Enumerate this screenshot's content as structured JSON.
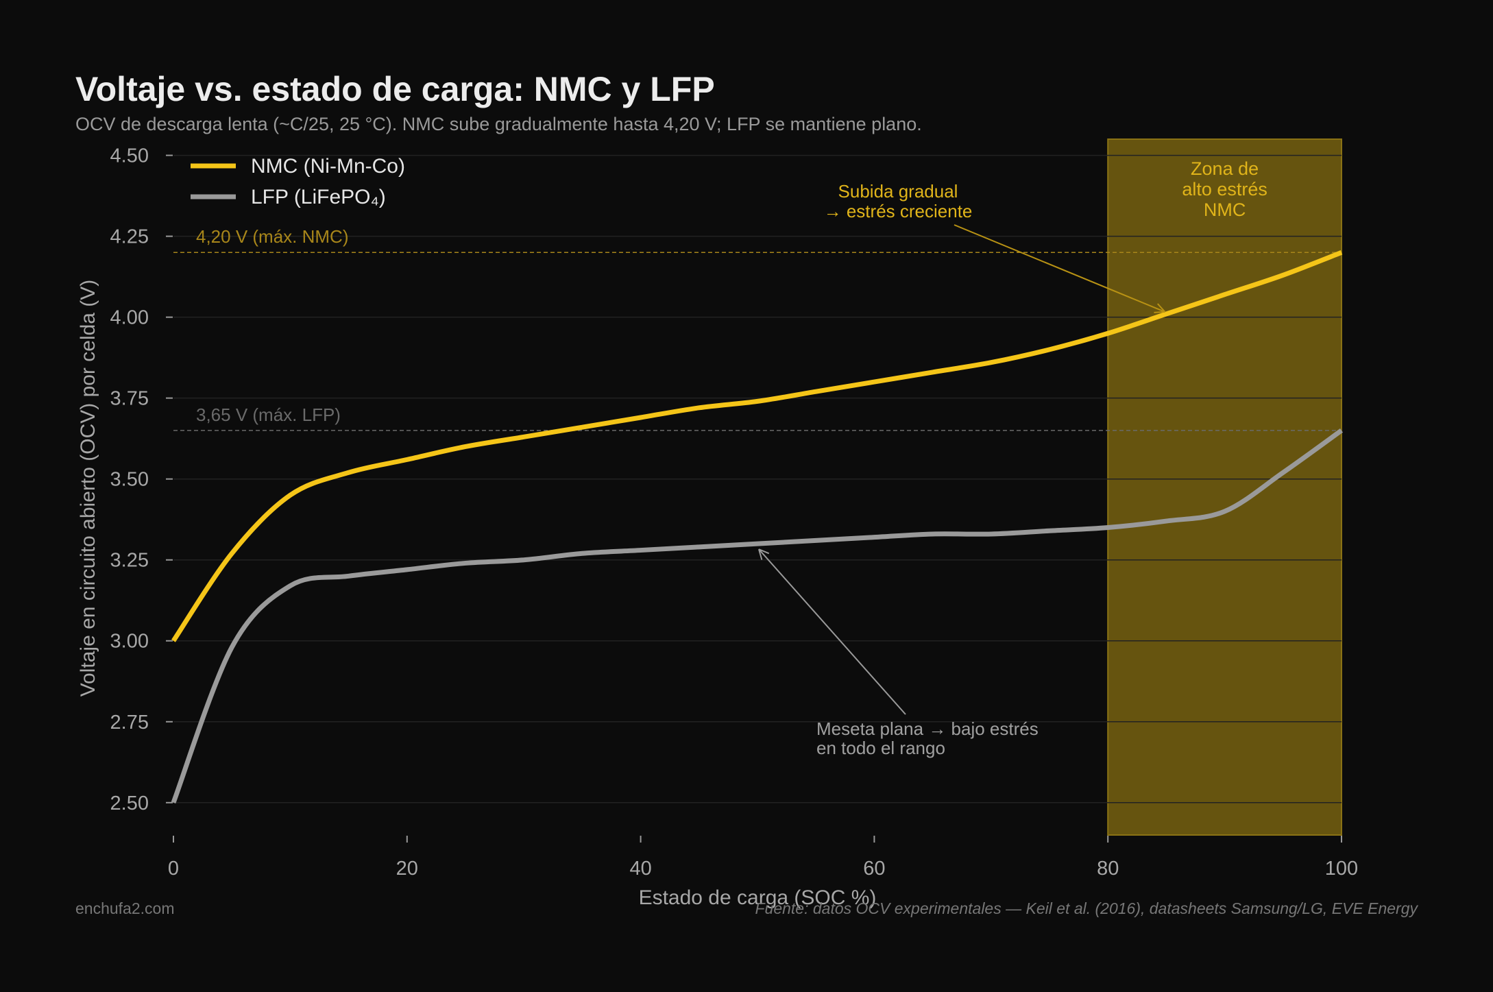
{
  "chart_data": {
    "type": "line",
    "title": "Voltaje vs. estado de carga: NMC y LFP",
    "subtitle": "OCV de descarga lenta (~C/25, 25 °C). NMC sube gradualmente hasta 4,20 V; LFP se mantiene plano.",
    "xlabel": "Estado de carga (SOC %)",
    "ylabel": "Voltaje en circuito abierto (OCV) por celda (V)",
    "xlim": [
      0,
      100
    ],
    "ylim": [
      2.4,
      4.55
    ],
    "xticks": [
      "0",
      "20",
      "40",
      "60",
      "80",
      "100"
    ],
    "yticks": [
      "2.50",
      "2.75",
      "3.00",
      "3.25",
      "3.50",
      "3.75",
      "4.00",
      "4.25",
      "4.50"
    ],
    "grid": true,
    "legend": "top-left",
    "x": [
      0,
      5,
      10,
      15,
      20,
      25,
      30,
      35,
      40,
      45,
      50,
      55,
      60,
      65,
      70,
      75,
      80,
      85,
      90,
      95,
      100
    ],
    "series": [
      {
        "name": "NMC (Ni-Mn-Co)",
        "color": "#f5c518",
        "values": [
          3.0,
          3.27,
          3.45,
          3.52,
          3.56,
          3.6,
          3.63,
          3.66,
          3.69,
          3.72,
          3.74,
          3.77,
          3.8,
          3.83,
          3.86,
          3.9,
          3.95,
          4.01,
          4.07,
          4.13,
          4.2
        ]
      },
      {
        "name": "LFP (LiFePO₄)",
        "color": "#9a9a9a",
        "values": [
          2.5,
          2.98,
          3.17,
          3.2,
          3.22,
          3.24,
          3.25,
          3.27,
          3.28,
          3.29,
          3.3,
          3.31,
          3.32,
          3.33,
          3.33,
          3.34,
          3.35,
          3.37,
          3.4,
          3.52,
          3.65
        ]
      }
    ],
    "reference_lines": [
      {
        "y": 4.2,
        "label": "4,20 V (máx. NMC)",
        "color": "#a8861a"
      },
      {
        "y": 3.65,
        "label": "3,65 V (máx. LFP)",
        "color": "#6a6a6a"
      }
    ],
    "shaded_region": {
      "x": [
        80,
        100
      ],
      "label": [
        "Zona de",
        "alto estrés",
        "NMC"
      ],
      "color": "#66540f"
    },
    "annotations": [
      {
        "lines": [
          "Subida gradual",
          "→ estrés creciente"
        ],
        "target": [
          85,
          4.01
        ],
        "color": "#e0b41a"
      },
      {
        "lines": [
          "Meseta plana → bajo estrés",
          "en todo el rango"
        ],
        "target": [
          50,
          3.3
        ],
        "color": "#a0a0a0"
      }
    ]
  },
  "footer": {
    "brand": "enchufa2.com",
    "source": "Fuente: datos OCV experimentales — Keil et al. (2016), datasheets Samsung/LG, EVE Energy"
  }
}
